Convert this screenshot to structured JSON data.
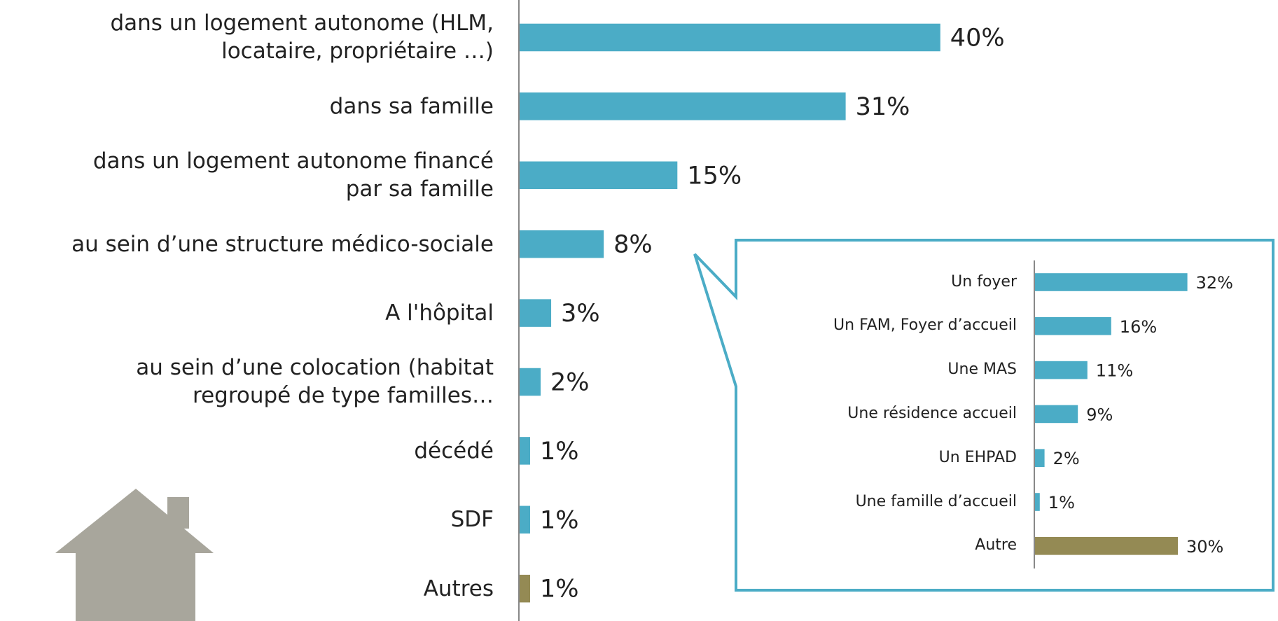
{
  "chart_data": [
    {
      "type": "bar",
      "orientation": "horizontal",
      "categories": [
        "dans un logement autonome (HLM,\nlocataire, propriétaire …)",
        "dans sa famille",
        "dans un logement autonome financé\npar sa famille",
        "au sein d’une structure médico-sociale",
        "A l'hôpital",
        "au sein d’une colocation (habitat\nregroupé de type familles…",
        "décédé",
        "SDF",
        "Autres"
      ],
      "values": [
        40,
        31,
        15,
        8,
        3,
        2,
        1,
        1,
        1
      ],
      "value_labels": [
        "40%",
        "31%",
        "15%",
        "8%",
        "3%",
        "2%",
        "1%",
        "1%",
        "1%"
      ],
      "colors": [
        "#4bacc6",
        "#4bacc6",
        "#4bacc6",
        "#4bacc6",
        "#4bacc6",
        "#4bacc6",
        "#4bacc6",
        "#4bacc6",
        "#948a54"
      ]
    },
    {
      "type": "bar",
      "orientation": "horizontal",
      "categories": [
        "Un foyer",
        "Un FAM, Foyer d’accueil",
        "Une MAS",
        "Une résidence accueil",
        "Un EHPAD",
        "Une famille d’accueil",
        "Autre"
      ],
      "values": [
        32,
        16,
        11,
        9,
        2,
        1,
        30
      ],
      "value_labels": [
        "32%",
        "16%",
        "11%",
        "9%",
        "2%",
        "1%",
        "30%"
      ],
      "colors": [
        "#4bacc6",
        "#4bacc6",
        "#4bacc6",
        "#4bacc6",
        "#4bacc6",
        "#4bacc6",
        "#948a54"
      ]
    }
  ]
}
